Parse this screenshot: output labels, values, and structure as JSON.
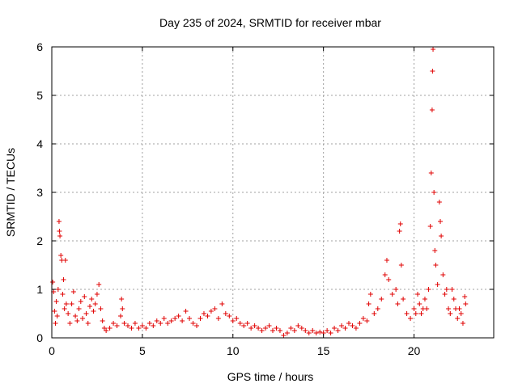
{
  "chart_data": {
    "type": "scatter",
    "title": "Day 235 of 2024, SRMTID for receiver mbar",
    "xlabel": "GPS time / hours",
    "ylabel": "SRMTID / TECUs",
    "xlim": [
      0,
      24.4
    ],
    "ylim": [
      0,
      6
    ],
    "xticks": [
      0,
      5,
      10,
      15,
      20
    ],
    "yticks": [
      0,
      1,
      2,
      3,
      4,
      5,
      6
    ],
    "grid": true,
    "marker": "plus",
    "color": "#e00000",
    "series": [
      {
        "name": "SRMTID",
        "points": [
          [
            0.05,
            1.15
          ],
          [
            0.1,
            0.95
          ],
          [
            0.15,
            0.55
          ],
          [
            0.2,
            0.3
          ],
          [
            0.25,
            0.75
          ],
          [
            0.3,
            0.45
          ],
          [
            0.35,
            1.0
          ],
          [
            0.4,
            2.4
          ],
          [
            0.42,
            2.2
          ],
          [
            0.45,
            2.1
          ],
          [
            0.5,
            1.7
          ],
          [
            0.55,
            1.6
          ],
          [
            0.6,
            0.9
          ],
          [
            0.65,
            1.2
          ],
          [
            0.7,
            0.6
          ],
          [
            0.75,
            1.6
          ],
          [
            0.8,
            0.7
          ],
          [
            0.9,
            0.5
          ],
          [
            1.0,
            0.3
          ],
          [
            1.1,
            0.7
          ],
          [
            1.2,
            0.95
          ],
          [
            1.3,
            0.45
          ],
          [
            1.4,
            0.35
          ],
          [
            1.5,
            0.6
          ],
          [
            1.6,
            0.75
          ],
          [
            1.7,
            0.4
          ],
          [
            1.8,
            0.85
          ],
          [
            1.9,
            0.5
          ],
          [
            2.0,
            0.3
          ],
          [
            2.1,
            0.65
          ],
          [
            2.2,
            0.8
          ],
          [
            2.3,
            0.55
          ],
          [
            2.4,
            0.7
          ],
          [
            2.5,
            0.9
          ],
          [
            2.6,
            1.1
          ],
          [
            2.7,
            0.6
          ],
          [
            2.8,
            0.35
          ],
          [
            2.9,
            0.2
          ],
          [
            3.0,
            0.15
          ],
          [
            3.2,
            0.2
          ],
          [
            3.4,
            0.3
          ],
          [
            3.6,
            0.25
          ],
          [
            3.8,
            0.45
          ],
          [
            3.85,
            0.8
          ],
          [
            3.9,
            0.6
          ],
          [
            4.0,
            0.3
          ],
          [
            4.2,
            0.25
          ],
          [
            4.4,
            0.2
          ],
          [
            4.6,
            0.3
          ],
          [
            4.8,
            0.2
          ],
          [
            5.0,
            0.25
          ],
          [
            5.2,
            0.2
          ],
          [
            5.4,
            0.3
          ],
          [
            5.6,
            0.25
          ],
          [
            5.8,
            0.35
          ],
          [
            6.0,
            0.3
          ],
          [
            6.2,
            0.4
          ],
          [
            6.4,
            0.3
          ],
          [
            6.6,
            0.35
          ],
          [
            6.8,
            0.4
          ],
          [
            7.0,
            0.45
          ],
          [
            7.2,
            0.35
          ],
          [
            7.4,
            0.55
          ],
          [
            7.6,
            0.4
          ],
          [
            7.8,
            0.3
          ],
          [
            8.0,
            0.25
          ],
          [
            8.2,
            0.4
          ],
          [
            8.4,
            0.5
          ],
          [
            8.6,
            0.45
          ],
          [
            8.8,
            0.55
          ],
          [
            9.0,
            0.6
          ],
          [
            9.2,
            0.4
          ],
          [
            9.4,
            0.7
          ],
          [
            9.6,
            0.5
          ],
          [
            9.8,
            0.45
          ],
          [
            10.0,
            0.35
          ],
          [
            10.2,
            0.4
          ],
          [
            10.4,
            0.3
          ],
          [
            10.6,
            0.25
          ],
          [
            10.8,
            0.3
          ],
          [
            11.0,
            0.2
          ],
          [
            11.2,
            0.25
          ],
          [
            11.4,
            0.2
          ],
          [
            11.6,
            0.15
          ],
          [
            11.8,
            0.2
          ],
          [
            12.0,
            0.25
          ],
          [
            12.2,
            0.15
          ],
          [
            12.4,
            0.2
          ],
          [
            12.6,
            0.15
          ],
          [
            12.8,
            0.05
          ],
          [
            13.0,
            0.1
          ],
          [
            13.2,
            0.2
          ],
          [
            13.4,
            0.15
          ],
          [
            13.6,
            0.25
          ],
          [
            13.8,
            0.2
          ],
          [
            14.0,
            0.15
          ],
          [
            14.2,
            0.1
          ],
          [
            14.4,
            0.15
          ],
          [
            14.6,
            0.1
          ],
          [
            14.8,
            0.12
          ],
          [
            15.0,
            0.1
          ],
          [
            15.2,
            0.15
          ],
          [
            15.4,
            0.1
          ],
          [
            15.6,
            0.2
          ],
          [
            15.8,
            0.15
          ],
          [
            16.0,
            0.25
          ],
          [
            16.2,
            0.2
          ],
          [
            16.4,
            0.3
          ],
          [
            16.6,
            0.25
          ],
          [
            16.8,
            0.2
          ],
          [
            17.0,
            0.3
          ],
          [
            17.2,
            0.4
          ],
          [
            17.4,
            0.35
          ],
          [
            17.5,
            0.7
          ],
          [
            17.6,
            0.9
          ],
          [
            17.8,
            0.5
          ],
          [
            18.0,
            0.6
          ],
          [
            18.2,
            0.8
          ],
          [
            18.4,
            1.3
          ],
          [
            18.5,
            1.6
          ],
          [
            18.6,
            1.2
          ],
          [
            18.8,
            0.9
          ],
          [
            19.0,
            1.0
          ],
          [
            19.1,
            0.7
          ],
          [
            19.2,
            2.2
          ],
          [
            19.25,
            2.35
          ],
          [
            19.3,
            1.5
          ],
          [
            19.4,
            0.8
          ],
          [
            19.6,
            0.5
          ],
          [
            19.8,
            0.4
          ],
          [
            20.0,
            0.6
          ],
          [
            20.1,
            0.5
          ],
          [
            20.2,
            0.9
          ],
          [
            20.3,
            0.7
          ],
          [
            20.4,
            0.5
          ],
          [
            20.5,
            0.6
          ],
          [
            20.6,
            0.8
          ],
          [
            20.7,
            0.6
          ],
          [
            20.8,
            1.0
          ],
          [
            20.9,
            2.3
          ],
          [
            20.95,
            3.4
          ],
          [
            21.0,
            4.7
          ],
          [
            21.02,
            5.5
          ],
          [
            21.05,
            5.95
          ],
          [
            21.1,
            3.0
          ],
          [
            21.15,
            1.8
          ],
          [
            21.2,
            1.5
          ],
          [
            21.3,
            1.1
          ],
          [
            21.4,
            2.8
          ],
          [
            21.45,
            2.4
          ],
          [
            21.5,
            2.1
          ],
          [
            21.6,
            1.3
          ],
          [
            21.7,
            0.9
          ],
          [
            21.8,
            1.0
          ],
          [
            21.9,
            0.6
          ],
          [
            22.0,
            0.5
          ],
          [
            22.1,
            1.0
          ],
          [
            22.2,
            0.8
          ],
          [
            22.3,
            0.6
          ],
          [
            22.4,
            0.4
          ],
          [
            22.5,
            0.6
          ],
          [
            22.6,
            0.5
          ],
          [
            22.7,
            0.3
          ],
          [
            22.8,
            0.85
          ],
          [
            22.85,
            0.7
          ]
        ]
      }
    ]
  }
}
